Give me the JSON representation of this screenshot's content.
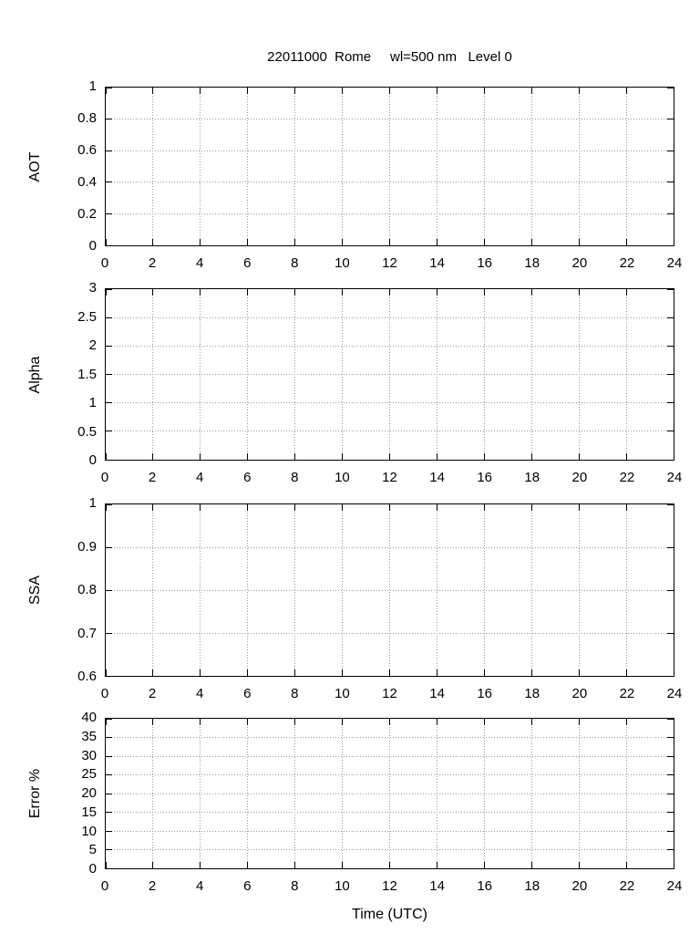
{
  "title": "22011000  Rome     wl=500 nm   Level 0",
  "xlabel": "Time (UTC)",
  "colors": {
    "background": "#ffffff",
    "axis": "#000000",
    "grid": "#9a9a9a",
    "text": "#000000"
  },
  "chart_data": [
    {
      "type": "line",
      "panel": "aot",
      "ylabel": "AOT",
      "xlim": [
        0,
        24
      ],
      "ylim": [
        0,
        1
      ],
      "xtick_values": [
        0,
        2,
        4,
        6,
        8,
        10,
        12,
        14,
        16,
        18,
        20,
        22,
        24
      ],
      "xtick_labels": [
        "0",
        "2",
        "4",
        "6",
        "8",
        "10",
        "12",
        "14",
        "16",
        "18",
        "20",
        "22",
        "24"
      ],
      "ytick_values": [
        0,
        0.2,
        0.4,
        0.6,
        0.8,
        1
      ],
      "ytick_labels": [
        "0",
        "0.2",
        "0.4",
        "0.6",
        "0.8",
        "1"
      ],
      "grid": true,
      "legend": false,
      "series": []
    },
    {
      "type": "line",
      "panel": "alpha",
      "ylabel": "Alpha",
      "xlim": [
        0,
        24
      ],
      "ylim": [
        0,
        3
      ],
      "xtick_values": [
        0,
        2,
        4,
        6,
        8,
        10,
        12,
        14,
        16,
        18,
        20,
        22,
        24
      ],
      "xtick_labels": [
        "0",
        "2",
        "4",
        "6",
        "8",
        "10",
        "12",
        "14",
        "16",
        "18",
        "20",
        "22",
        "24"
      ],
      "ytick_values": [
        0,
        0.5,
        1,
        1.5,
        2,
        2.5,
        3
      ],
      "ytick_labels": [
        "0",
        "0.5",
        "1",
        "1.5",
        "2",
        "2.5",
        "3"
      ],
      "grid": true,
      "legend": false,
      "series": []
    },
    {
      "type": "line",
      "panel": "ssa",
      "ylabel": "SSA",
      "xlim": [
        0,
        24
      ],
      "ylim": [
        0.6,
        1
      ],
      "xtick_values": [
        0,
        2,
        4,
        6,
        8,
        10,
        12,
        14,
        16,
        18,
        20,
        22,
        24
      ],
      "xtick_labels": [
        "0",
        "2",
        "4",
        "6",
        "8",
        "10",
        "12",
        "14",
        "16",
        "18",
        "20",
        "22",
        "24"
      ],
      "ytick_values": [
        0.6,
        0.7,
        0.8,
        0.9,
        1
      ],
      "ytick_labels": [
        "0.6",
        "0.7",
        "0.8",
        "0.9",
        "1"
      ],
      "grid": true,
      "legend": false,
      "series": []
    },
    {
      "type": "line",
      "panel": "error-pct",
      "ylabel": "Error %",
      "xlim": [
        0,
        24
      ],
      "ylim": [
        0,
        40
      ],
      "xtick_values": [
        0,
        2,
        4,
        6,
        8,
        10,
        12,
        14,
        16,
        18,
        20,
        22,
        24
      ],
      "xtick_labels": [
        "0",
        "2",
        "4",
        "6",
        "8",
        "10",
        "12",
        "14",
        "16",
        "18",
        "20",
        "22",
        "24"
      ],
      "ytick_values": [
        0,
        5,
        10,
        15,
        20,
        25,
        30,
        35,
        40
      ],
      "ytick_labels": [
        "0",
        "5",
        "10",
        "15",
        "20",
        "25",
        "30",
        "35",
        "40"
      ],
      "grid": true,
      "legend": false,
      "series": []
    }
  ]
}
